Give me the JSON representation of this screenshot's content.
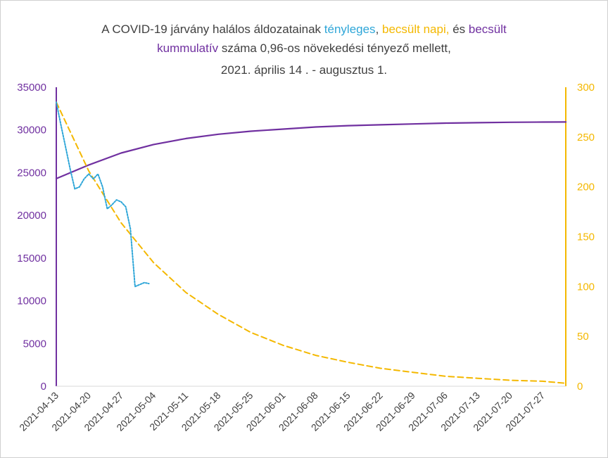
{
  "title": {
    "line1_prefix": "A COVID-19 járvány halálos áldozatainak ",
    "line1_actual": "tényleges",
    "line1_sep1": ", ",
    "line1_est": "becsült napi, ",
    "line1_sep2": " és ",
    "line1_cum": "becsült",
    "line2_cum": "kummulatív",
    "line2_rest": " száma  0,96-os növekedési tényező mellett,",
    "line3": "2021. április 14 . - augusztus 1."
  },
  "colors": {
    "cumulative": "#7030a0",
    "estimated_daily": "#f4b800",
    "actual": "#2ea6d8"
  },
  "chart_data": {
    "type": "line",
    "x_start": "2021-04-13",
    "x_end": "2021-08-01",
    "x_ticks": [
      "2021-04-13",
      "2021-04-20",
      "2021-04-27",
      "2021-05-04",
      "2021-05-11",
      "2021-05-18",
      "2021-05-25",
      "2021-06-01",
      "2021-06-08",
      "2021-06-15",
      "2021-06-22",
      "2021-06-29",
      "2021-07-06",
      "2021-07-13",
      "2021-07-20",
      "2021-07-27"
    ],
    "y_left": {
      "min": 0,
      "max": 35000,
      "ticks": [
        0,
        5000,
        10000,
        15000,
        20000,
        25000,
        30000,
        35000
      ]
    },
    "y_right": {
      "min": 0,
      "max": 300,
      "ticks": [
        0,
        50,
        100,
        150,
        200,
        250,
        300
      ]
    },
    "series": [
      {
        "axis": "left",
        "style": "solid",
        "x": [
          "2021-04-13",
          "2021-04-20",
          "2021-04-27",
          "2021-05-04",
          "2021-05-11",
          "2021-05-18",
          "2021-05-25",
          "2021-06-01",
          "2021-06-08",
          "2021-06-15",
          "2021-06-22",
          "2021-06-29",
          "2021-07-06",
          "2021-07-13",
          "2021-07-20",
          "2021-07-27",
          "2021-08-01"
        ],
        "y": [
          24300,
          25900,
          27300,
          28300,
          29000,
          29500,
          29850,
          30100,
          30350,
          30500,
          30600,
          30700,
          30800,
          30850,
          30900,
          30920,
          30930
        ]
      },
      {
        "axis": "right",
        "style": "dashed",
        "x": [
          "2021-04-13",
          "2021-04-20",
          "2021-04-27",
          "2021-05-04",
          "2021-05-11",
          "2021-05-18",
          "2021-05-25",
          "2021-06-01",
          "2021-06-08",
          "2021-06-15",
          "2021-06-22",
          "2021-06-29",
          "2021-07-06",
          "2021-07-13",
          "2021-07-20",
          "2021-07-27",
          "2021-08-01"
        ],
        "y": [
          285,
          216,
          164,
          124,
          94,
          72,
          54,
          41,
          31,
          24,
          18,
          14,
          10,
          8,
          6,
          5,
          3
        ]
      },
      {
        "axis": "right",
        "style": "dotted",
        "x": [
          "2021-04-13",
          "2021-04-14",
          "2021-04-15",
          "2021-04-16",
          "2021-04-17",
          "2021-04-18",
          "2021-04-19",
          "2021-04-20",
          "2021-04-21",
          "2021-04-22",
          "2021-04-23",
          "2021-04-24",
          "2021-04-25",
          "2021-04-26",
          "2021-04-27",
          "2021-04-28",
          "2021-04-29",
          "2021-04-30",
          "2021-05-01",
          "2021-05-02",
          "2021-05-03"
        ],
        "y": [
          285,
          262,
          240,
          218,
          198,
          200,
          208,
          213,
          208,
          213,
          200,
          178,
          182,
          187,
          185,
          180,
          158,
          100,
          102,
          104,
          103
        ]
      }
    ]
  }
}
